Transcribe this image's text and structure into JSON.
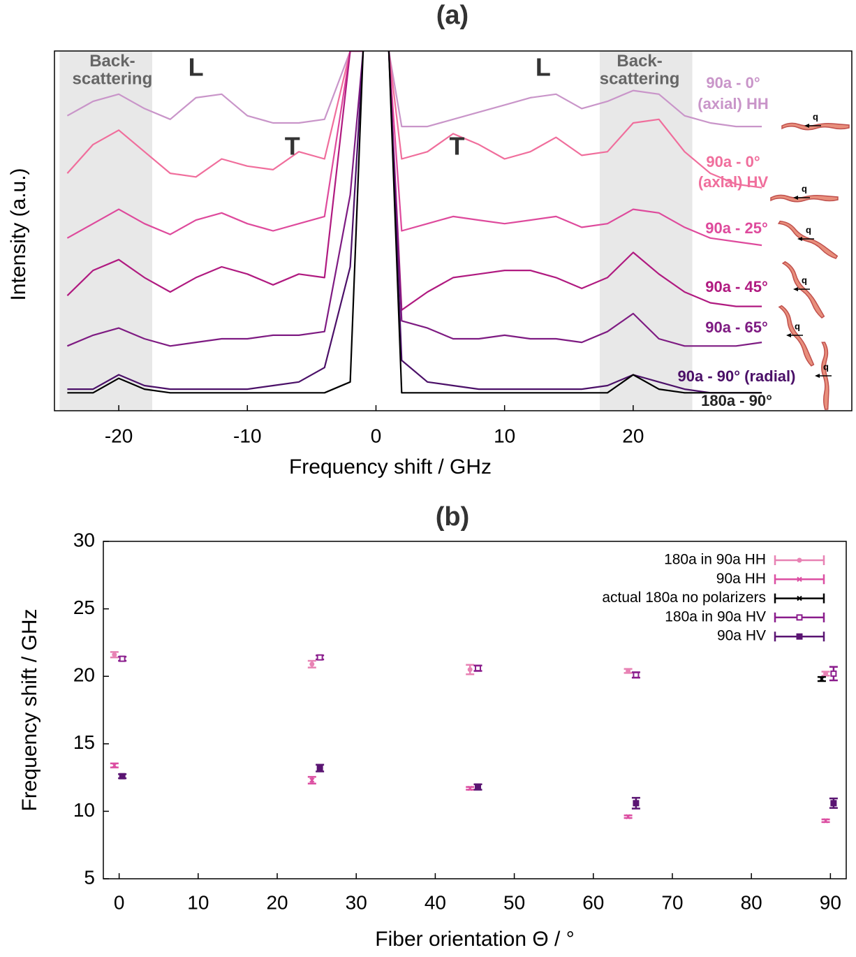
{
  "chart_data": [
    {
      "type": "line",
      "title": "(a)",
      "xlabel": "Frequency shift / GHz",
      "ylabel": "Intensity (a.u.)",
      "xlim": [
        -25,
        37
      ],
      "ylim": [
        0,
        100
      ],
      "xticks": [
        -20,
        -10,
        0,
        10,
        20
      ],
      "shaded_regions": [
        [
          -24.6,
          -17.4
        ],
        [
          17.4,
          24.6
        ]
      ],
      "annotations": [
        {
          "text": "Back-",
          "x": -20.5,
          "y": 97
        },
        {
          "text": "scattering",
          "x": -20.5,
          "y": 92
        },
        {
          "text": "Back-",
          "x": 20.5,
          "y": 97
        },
        {
          "text": "scattering",
          "x": 20.5,
          "y": 92
        },
        {
          "text": "L",
          "x": -14,
          "y": 95
        },
        {
          "text": "L",
          "x": 13,
          "y": 95
        },
        {
          "text": "T",
          "x": -6.5,
          "y": 73
        },
        {
          "text": "T",
          "x": 6.3,
          "y": 73
        }
      ],
      "icon_label": "q",
      "x": [
        -24,
        -22,
        -20,
        -18,
        -16,
        -14,
        -12,
        -10,
        -8,
        -6,
        -4,
        -2,
        -1,
        0,
        1,
        2,
        4,
        6,
        8,
        10,
        12,
        14,
        16,
        18,
        20,
        22,
        24,
        26,
        28,
        30
      ],
      "series": [
        {
          "name": "90a - 0° (axial) HH",
          "color": "#c995c9",
          "values": [
            82,
            86,
            88,
            84,
            81,
            87,
            88,
            82,
            80,
            80,
            81,
            100,
            100,
            null,
            100,
            79,
            79,
            81,
            83,
            85,
            87,
            88,
            84,
            86,
            89,
            88,
            82,
            80,
            79,
            79
          ]
        },
        {
          "name": "90a - 0° (axial) HV",
          "color": "#f06e9c",
          "values": [
            66,
            74,
            78,
            72,
            66,
            65,
            70,
            68,
            67,
            72,
            70,
            100,
            100,
            null,
            100,
            70,
            72,
            77,
            74,
            70,
            72,
            76,
            71,
            72,
            80,
            81,
            72,
            66,
            63,
            62
          ]
        },
        {
          "name": "90a - 25°",
          "color": "#de4a9c",
          "values": [
            48,
            52,
            56,
            52,
            49,
            53,
            55,
            52,
            50,
            52,
            54,
            100,
            100,
            null,
            100,
            50,
            52,
            54,
            53,
            52,
            53,
            54,
            51,
            52,
            56,
            55,
            51,
            48,
            47,
            46
          ]
        },
        {
          "name": "90a - 45°",
          "color": "#b01a80",
          "values": [
            32,
            39,
            42,
            37,
            33,
            37,
            40,
            38,
            35,
            38,
            37,
            100,
            100,
            null,
            100,
            28,
            33,
            37,
            38,
            39,
            39,
            37,
            34,
            37,
            44,
            38,
            33,
            30,
            29,
            29
          ]
        },
        {
          "name": "90a - 65°",
          "color": "#7e1b82",
          "values": [
            18,
            21,
            23,
            20,
            18,
            19,
            20,
            20,
            21,
            21,
            22,
            60,
            100,
            null,
            100,
            25,
            23,
            20,
            20,
            21,
            20,
            20,
            19,
            22,
            27,
            20,
            18,
            18,
            18,
            19
          ]
        },
        {
          "name": "90a - 90° (radial)",
          "color": "#4b1068",
          "values": [
            6,
            6,
            10,
            7,
            6,
            6,
            6,
            6,
            7,
            8,
            12,
            40,
            100,
            null,
            100,
            14,
            8,
            7,
            6,
            6,
            6,
            6,
            6,
            7,
            10,
            8,
            6,
            5,
            5,
            5
          ]
        },
        {
          "name": "180a - 90°",
          "color": "#000000",
          "values": [
            5,
            5,
            9,
            6,
            5,
            5,
            5,
            5,
            5,
            5,
            5,
            8,
            100,
            null,
            100,
            5,
            5,
            5,
            5,
            5,
            5,
            5,
            5,
            5,
            10,
            6,
            5,
            5,
            5,
            5
          ]
        }
      ]
    },
    {
      "type": "scatter",
      "title": "(b)",
      "xlabel": "Fiber orientation Θ / °",
      "ylabel": "Frequency shift / GHz",
      "xlim": [
        -2,
        92
      ],
      "ylim": [
        5,
        30
      ],
      "xticks": [
        0,
        10,
        20,
        30,
        40,
        50,
        60,
        70,
        80,
        90
      ],
      "yticks": [
        5,
        10,
        15,
        20,
        25,
        30
      ],
      "legend": "top-right",
      "series": [
        {
          "name": "180a in 90a HH",
          "color": "#e882b4",
          "marker": "dot",
          "x": [
            -0.6,
            24.4,
            44.4,
            64.4,
            89.4
          ],
          "values": [
            21.6,
            20.9,
            20.5,
            20.4,
            20.2
          ],
          "errors": [
            0.2,
            0.25,
            0.35,
            0.15,
            0.15
          ]
        },
        {
          "name": "90a HH",
          "color": "#dc4fa2",
          "marker": "cross",
          "x": [
            -0.6,
            24.4,
            44.4,
            64.4,
            89.4
          ],
          "values": [
            13.4,
            12.3,
            11.7,
            9.6,
            9.3
          ],
          "errors": [
            0.15,
            0.25,
            0.1,
            0.1,
            0.1
          ]
        },
        {
          "name": "actual 180a no polarizers",
          "color": "#000000",
          "marker": "cross",
          "x": [
            88.9
          ],
          "values": [
            19.8
          ],
          "errors": [
            0.15
          ]
        },
        {
          "name": "180a in 90a HV",
          "color": "#8a1c8c",
          "marker": "open-square",
          "x": [
            0.4,
            25.4,
            45.4,
            65.4,
            90.4
          ],
          "values": [
            21.3,
            21.4,
            20.6,
            20.1,
            20.2
          ],
          "errors": [
            0.15,
            0.15,
            0.2,
            0.2,
            0.5
          ]
        },
        {
          "name": "90a HV",
          "color": "#5a1472",
          "marker": "square",
          "x": [
            0.4,
            25.4,
            45.4,
            65.4,
            90.4
          ],
          "values": [
            12.6,
            13.2,
            11.8,
            10.6,
            10.6
          ],
          "errors": [
            0.15,
            0.25,
            0.2,
            0.4,
            0.35
          ]
        }
      ]
    }
  ]
}
